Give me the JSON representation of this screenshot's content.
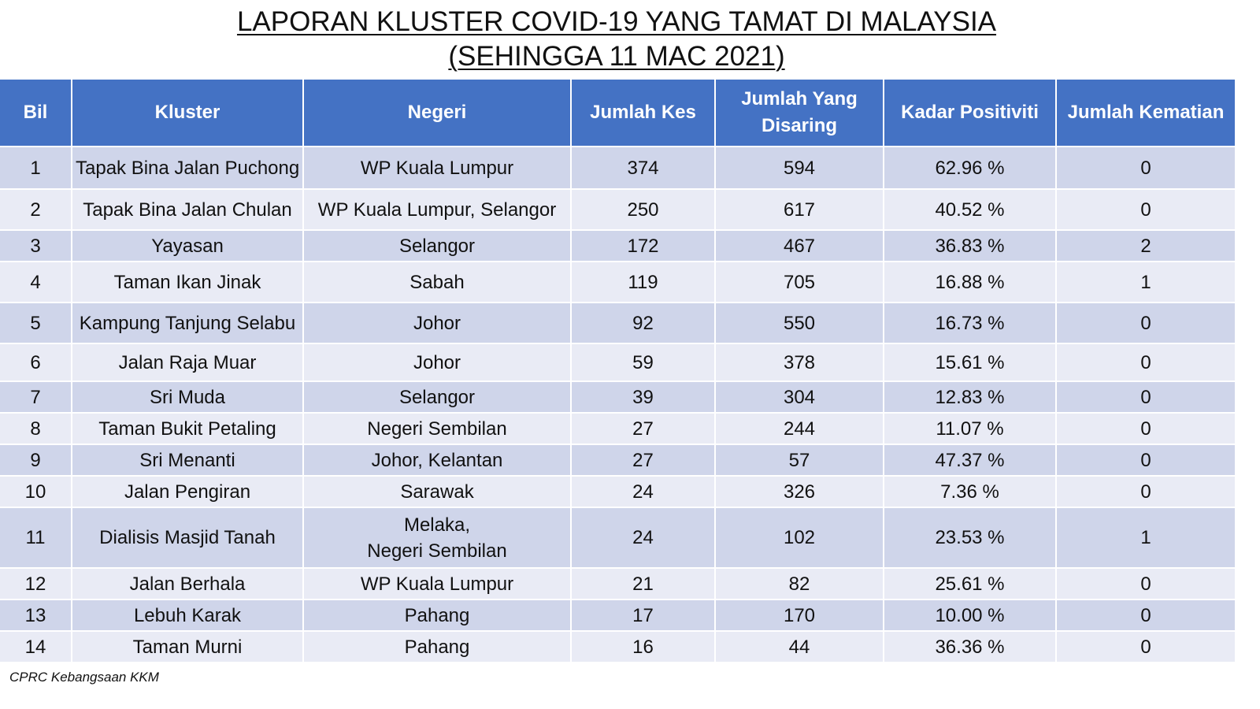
{
  "title": {
    "line1": "LAPORAN KLUSTER COVID-19 YANG TAMAT DI MALAYSIA",
    "line2": "(SEHINGGA  11 MAC 2021)"
  },
  "table": {
    "headers": [
      "Bil",
      "Kluster",
      "Negeri",
      "Jumlah Kes",
      "Jumlah Yang Disaring",
      "Kadar Positiviti",
      "Jumlah Kematian"
    ],
    "rows": [
      [
        "1",
        "Tapak Bina Jalan Puchong",
        "WP Kuala Lumpur",
        "374",
        "594",
        "62.96 %",
        "0"
      ],
      [
        "2",
        "Tapak Bina Jalan Chulan",
        "WP Kuala Lumpur, Selangor",
        "250",
        "617",
        "40.52 %",
        "0"
      ],
      [
        "3",
        "Yayasan",
        "Selangor",
        "172",
        "467",
        "36.83 %",
        "2"
      ],
      [
        "4",
        "Taman Ikan Jinak",
        "Sabah",
        "119",
        "705",
        "16.88 %",
        "1"
      ],
      [
        "5",
        "Kampung Tanjung Selabu",
        "Johor",
        "92",
        "550",
        "16.73 %",
        "0"
      ],
      [
        "6",
        "Jalan Raja Muar",
        "Johor",
        "59",
        "378",
        "15.61 %",
        "0"
      ],
      [
        "7",
        "Sri Muda",
        "Selangor",
        "39",
        "304",
        "12.83 %",
        "0"
      ],
      [
        "8",
        "Taman Bukit Petaling",
        "Negeri Sembilan",
        "27",
        "244",
        "11.07 %",
        "0"
      ],
      [
        "9",
        "Sri Menanti",
        "Johor, Kelantan",
        "27",
        "57",
        "47.37 %",
        "0"
      ],
      [
        "10",
        "Jalan Pengiran",
        "Sarawak",
        "24",
        "326",
        "7.36 %",
        "0"
      ],
      [
        "11",
        "Dialisis Masjid Tanah",
        "Melaka,\nNegeri Sembilan",
        "24",
        "102",
        "23.53 %",
        "1"
      ],
      [
        "12",
        "Jalan Berhala",
        "WP Kuala Lumpur",
        "21",
        "82",
        "25.61 %",
        "0"
      ],
      [
        "13",
        "Lebuh Karak",
        "Pahang",
        "17",
        "170",
        "10.00 %",
        "0"
      ],
      [
        "14",
        "Taman Murni",
        "Pahang",
        "16",
        "44",
        "36.36 %",
        "0"
      ]
    ]
  },
  "footer": {
    "source": "CPRC Kebangsaan KKM"
  }
}
